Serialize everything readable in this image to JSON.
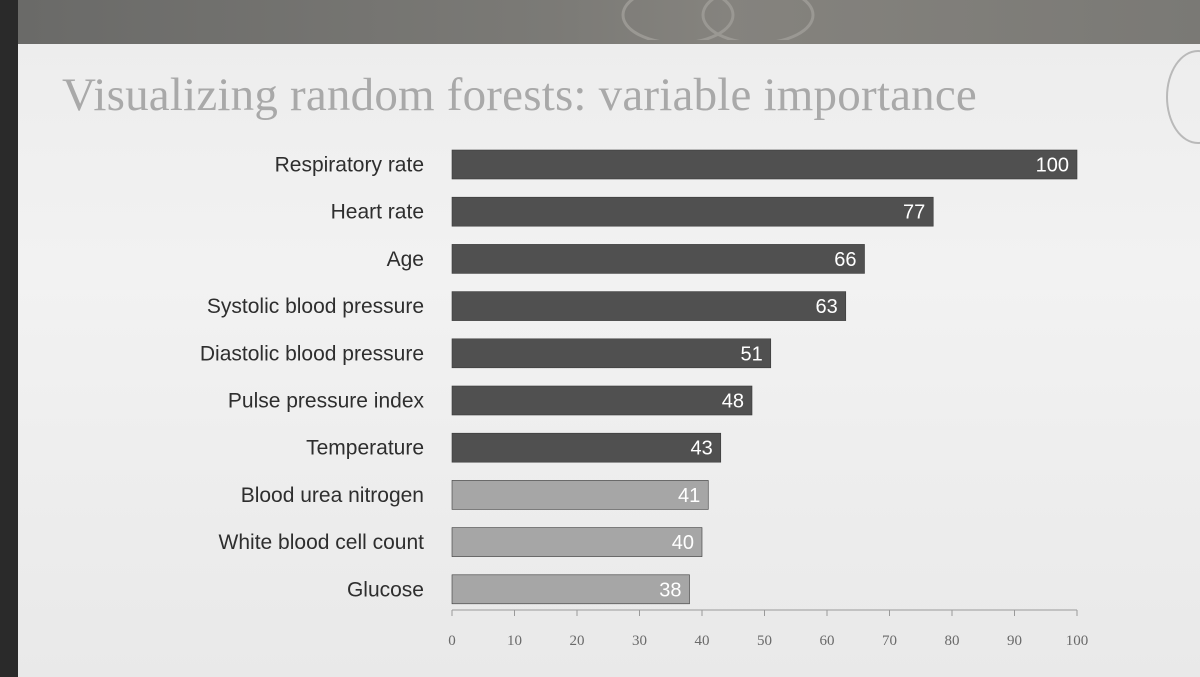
{
  "slide": {
    "title": "Visualizing random forests: variable importance"
  },
  "chart_data": {
    "type": "bar",
    "orientation": "horizontal",
    "categories": [
      "Respiratory rate",
      "Heart rate",
      "Age",
      "Systolic blood pressure",
      "Diastolic blood pressure",
      "Pulse pressure index",
      "Temperature",
      "Blood urea nitrogen",
      "White blood cell count",
      "Glucose"
    ],
    "values": [
      100,
      77,
      66,
      63,
      51,
      48,
      43,
      41,
      40,
      38
    ],
    "data_labels": [
      "100",
      "77",
      "66",
      "63",
      "51",
      "48",
      "43",
      "41",
      "40",
      "38"
    ],
    "xlim": [
      0,
      100
    ],
    "xticks": [
      "0",
      "10",
      "20",
      "30",
      "40",
      "50",
      "60",
      "70",
      "80",
      "90",
      "100"
    ],
    "grid": false,
    "colors": {
      "dark_bar": "#505050",
      "light_bar": "#a6a6a6",
      "dark_bar_count": 7
    }
  }
}
